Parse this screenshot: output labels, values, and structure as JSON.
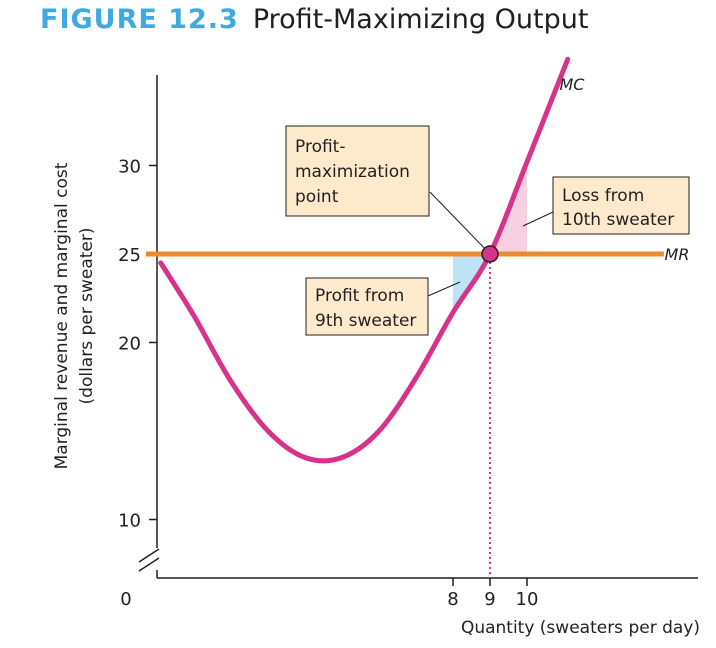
{
  "figure": {
    "label": "FIGURE 12.3",
    "title": "Profit-Maximizing Output"
  },
  "colors": {
    "mc": "#d6338a",
    "mr": "#ec8a2f",
    "profit_fill": "#bfe3f6",
    "loss_fill": "#f6cfe1",
    "box_fill": "#fdeacc",
    "label_blue": "#3fa9e0"
  },
  "chart_data": {
    "type": "line",
    "ylabel_line1": "Marginal revenue and marginal cost",
    "ylabel_line2": "(dollars per sweater)",
    "xlabel": "Quantity (sweaters per day)",
    "origin_label": "0",
    "ylim": [
      10,
      35
    ],
    "xlim": [
      0,
      14
    ],
    "y_axis_broken": true,
    "y_ticks": [
      {
        "value": 10,
        "label": "10"
      },
      {
        "value": 20,
        "label": "20"
      },
      {
        "value": 25,
        "label": "25",
        "highlight": true
      },
      {
        "value": 30,
        "label": "30"
      }
    ],
    "x_ticks": [
      {
        "value": 8,
        "label": "8"
      },
      {
        "value": 9,
        "label": "9",
        "highlight": true
      },
      {
        "value": 10,
        "label": "10"
      }
    ],
    "series": [
      {
        "name": "MC",
        "x": [
          0.1,
          1,
          2,
          3,
          4,
          5,
          6,
          7,
          8,
          9,
          10,
          11.1
        ],
        "y": [
          24.5,
          21.5,
          17.8,
          15.0,
          13.5,
          13.5,
          15.0,
          18.0,
          21.7,
          25.0,
          30.2,
          36.0
        ]
      },
      {
        "name": "MR",
        "x": [
          -0.3,
          13.7
        ],
        "y": [
          25,
          25
        ]
      }
    ],
    "point": {
      "x": 9,
      "y": 25
    },
    "profit_area": {
      "x_from": 8,
      "x_to": 9
    },
    "loss_area": {
      "x_from": 9,
      "x_to": 10
    },
    "annotations": [
      {
        "id": "maximization",
        "lines": [
          "Profit-",
          "maximization",
          "point"
        ]
      },
      {
        "id": "loss",
        "lines": [
          "Loss from",
          "10th sweater"
        ]
      },
      {
        "id": "profit",
        "lines": [
          "Profit from",
          "9th sweater"
        ]
      }
    ]
  }
}
